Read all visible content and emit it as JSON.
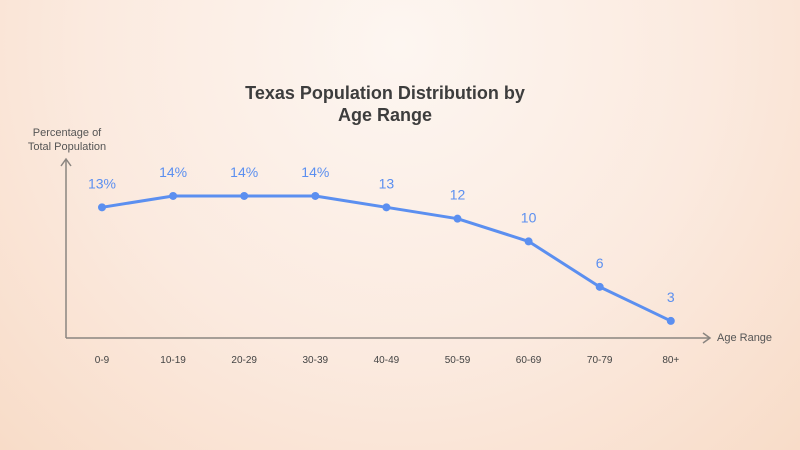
{
  "chart_data": {
    "type": "line",
    "title": "Texas Population Distribution by Age Range",
    "title_lines": [
      "Texas Population Distribution by",
      "Age Range"
    ],
    "ylabel_lines": [
      "Percentage of",
      "Total Population"
    ],
    "xlabel": "Age Range",
    "categories": [
      "0-9",
      "10-19",
      "20-29",
      "30-39",
      "40-49",
      "50-59",
      "60-69",
      "70-79",
      "80+"
    ],
    "values": [
      13,
      14,
      14,
      14,
      13,
      12,
      10,
      6,
      3
    ],
    "data_labels": [
      "13%",
      "14%",
      "14%",
      "14%",
      "13",
      "12",
      "10",
      "6",
      "3"
    ],
    "line_color": "#5b8ff0",
    "label_color": "#5b8ff0",
    "axis_color": "#8a8580",
    "grid": false,
    "legend": "none"
  }
}
